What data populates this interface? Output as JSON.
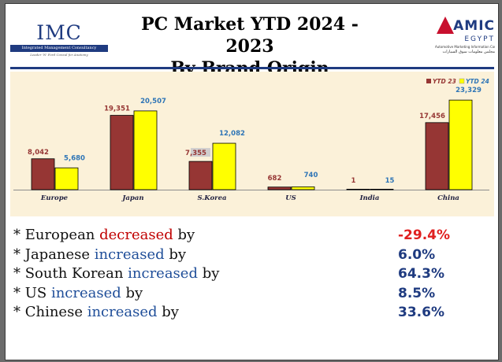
{
  "header": {
    "title_line1": "PC Market YTD 2024 - 2023",
    "title_line2": "By Brand Origin",
    "left_logo": {
      "name": "IMC",
      "bar_text": "Integrated Management Consultancy",
      "tagline": "Leader 'N' Ford Consul for Anatomy"
    },
    "right_logo": {
      "name": "AMIC",
      "subname": "EGYPT",
      "subtitle": "Automotive Marketing Information Council",
      "subtitle_ar": "مجلس معلومات سوق السيارات"
    }
  },
  "chart_data": {
    "type": "bar",
    "categories": [
      "Europe",
      "Japan",
      "S.Korea",
      "US",
      "India",
      "China"
    ],
    "series": [
      {
        "name": "YTD 23",
        "values": [
          8042,
          19351,
          7355,
          682,
          1,
          17456
        ],
        "labels": [
          "8,042",
          "19,351",
          "7,355",
          "682",
          "1",
          "17,456"
        ]
      },
      {
        "name": "YTD 24",
        "values": [
          5680,
          20507,
          12082,
          740,
          15,
          23329
        ],
        "labels": [
          "5,680",
          "20,507",
          "12,082",
          "740",
          "15",
          "23,329"
        ]
      }
    ],
    "colors": {
      "YTD 23": "#963634",
      "YTD 24": "#ffff00"
    },
    "label_colors": {
      "YTD 23": "#963634",
      "YTD 24": "#2e75b6"
    },
    "legend_position": "top-right",
    "grid": false
  },
  "summary": [
    {
      "prefix": "* European ",
      "keyword": "decreased",
      "suffix": " by",
      "value": "-29.4%",
      "trend": "down"
    },
    {
      "prefix": "* Japanese ",
      "keyword": "increased",
      "suffix": " by",
      "value": "6.0%",
      "trend": "up"
    },
    {
      "prefix": "* South Korean ",
      "keyword": "increased",
      "suffix": " by",
      "value": "64.3%",
      "trend": "up"
    },
    {
      "prefix": "* US ",
      "keyword": "increased",
      "suffix": " by",
      "value": "8.5%",
      "trend": "up"
    },
    {
      "prefix": "* Chinese ",
      "keyword": "increased",
      "suffix": " by",
      "value": "33.6%",
      "trend": "up"
    }
  ],
  "colors": {
    "decrease": "#c00000",
    "increase": "#1f4e99",
    "value_up": "#1f3b80",
    "value_down": "#e02020"
  }
}
